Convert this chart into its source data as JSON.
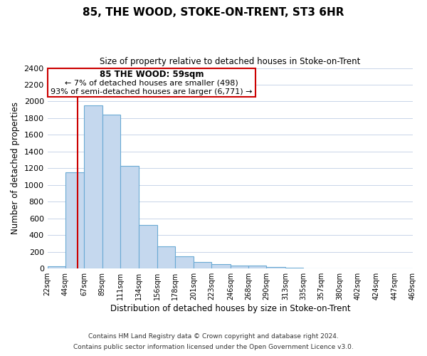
{
  "title": "85, THE WOOD, STOKE-ON-TRENT, ST3 6HR",
  "subtitle": "Size of property relative to detached houses in Stoke-on-Trent",
  "xlabel": "Distribution of detached houses by size in Stoke-on-Trent",
  "ylabel": "Number of detached properties",
  "bar_edges": [
    22,
    44,
    67,
    89,
    111,
    134,
    156,
    178,
    201,
    223,
    246,
    268,
    290,
    313,
    335,
    357,
    380,
    402,
    424,
    447,
    469
  ],
  "bar_heights": [
    25,
    1155,
    1950,
    1840,
    1225,
    520,
    265,
    148,
    78,
    52,
    35,
    38,
    15,
    8,
    4,
    2,
    1,
    1,
    0,
    0
  ],
  "tick_labels": [
    "22sqm",
    "44sqm",
    "67sqm",
    "89sqm",
    "111sqm",
    "134sqm",
    "156sqm",
    "178sqm",
    "201sqm",
    "223sqm",
    "246sqm",
    "268sqm",
    "290sqm",
    "313sqm",
    "335sqm",
    "357sqm",
    "380sqm",
    "402sqm",
    "424sqm",
    "447sqm",
    "469sqm"
  ],
  "bar_color": "#c5d8ee",
  "bar_edge_color": "#6aaad4",
  "vline_x": 59,
  "vline_color": "#cc0000",
  "ylim": [
    0,
    2400
  ],
  "yticks": [
    0,
    200,
    400,
    600,
    800,
    1000,
    1200,
    1400,
    1600,
    1800,
    2000,
    2200,
    2400
  ],
  "annotation_title": "85 THE WOOD: 59sqm",
  "annotation_line1": "← 7% of detached houses are smaller (498)",
  "annotation_line2": "93% of semi-detached houses are larger (6,771) →",
  "footer1": "Contains HM Land Registry data © Crown copyright and database right 2024.",
  "footer2": "Contains public sector information licensed under the Open Government Licence v3.0.",
  "bg_color": "#ffffff",
  "grid_color": "#c8d4e8"
}
